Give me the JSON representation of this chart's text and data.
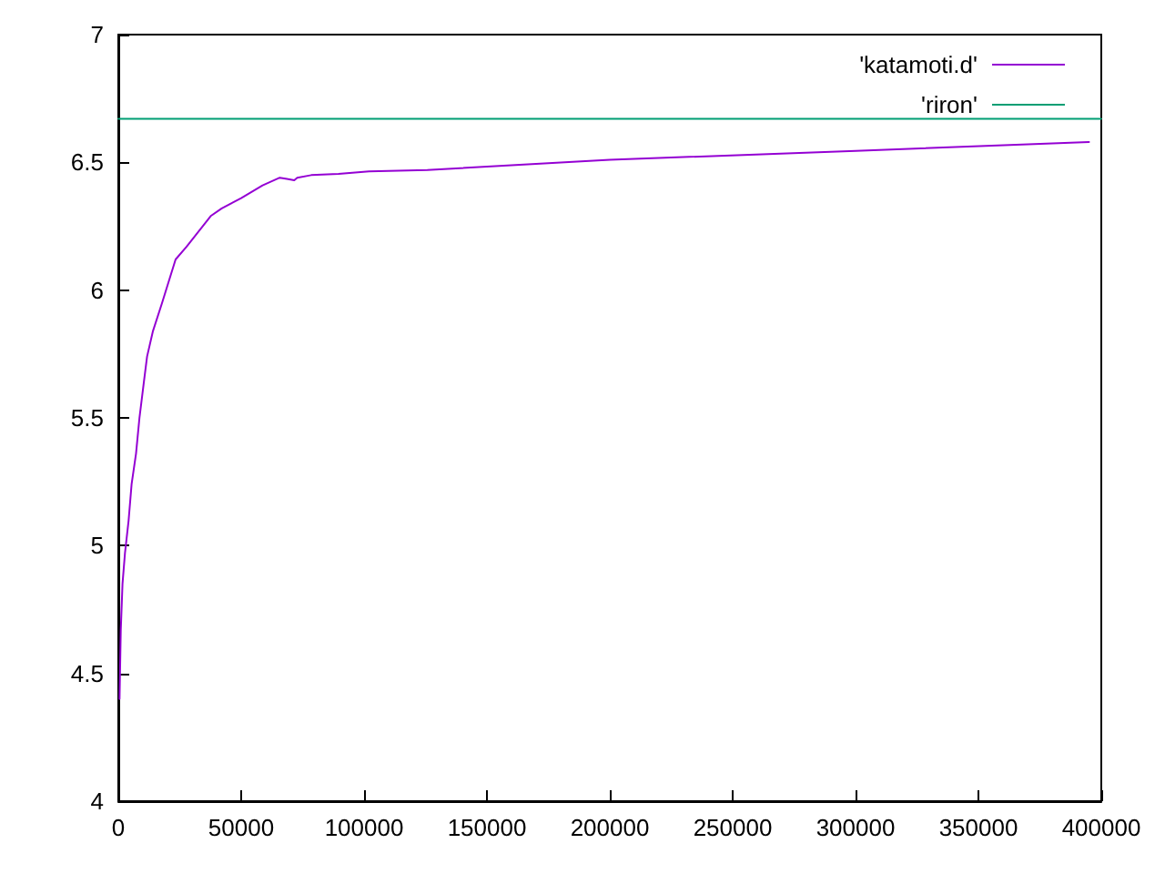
{
  "chart_data": {
    "type": "line",
    "xlim": [
      0,
      400000
    ],
    "xticks": [
      0,
      50000,
      100000,
      150000,
      200000,
      250000,
      300000,
      350000,
      400000
    ],
    "ylim": [
      4,
      7
    ],
    "yticks": [
      4,
      4.5,
      5,
      5.5,
      6,
      6.5,
      7
    ],
    "grid": false,
    "legend": "top right",
    "marker": "none",
    "line_style": "solid",
    "series": [
      {
        "name": "'katamoti.d'",
        "color": "#9400d3",
        "x": [
          500,
          1000,
          1700,
          2700,
          4200,
          5400,
          7200,
          8600,
          10400,
          11700,
          14100,
          17800,
          23300,
          27800,
          37600,
          42100,
          50000,
          58700,
          65700,
          68600,
          71600,
          72800,
          78500,
          89600,
          102000,
          125700,
          200000,
          300000,
          395000
        ],
        "values": [
          4.4,
          4.67,
          4.85,
          4.97,
          5.1,
          5.24,
          5.36,
          5.5,
          5.64,
          5.74,
          5.84,
          5.95,
          6.12,
          6.17,
          6.29,
          6.32,
          6.36,
          6.41,
          6.44,
          6.435,
          6.43,
          6.44,
          6.45,
          6.455,
          6.465,
          6.47,
          6.51,
          6.545,
          6.58
        ]
      },
      {
        "name": "'riron'",
        "color": "#009e73",
        "x": [
          0,
          400000
        ],
        "values": [
          6.67,
          6.67
        ]
      }
    ]
  }
}
